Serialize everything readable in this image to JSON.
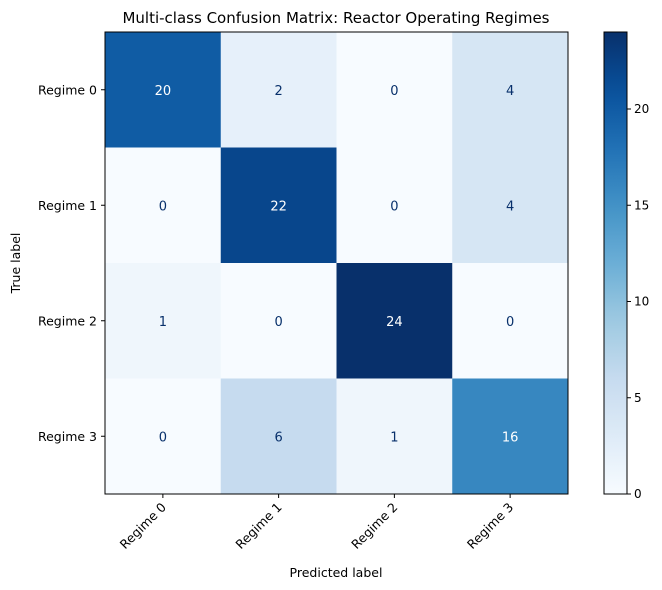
{
  "chart_data": {
    "type": "heatmap",
    "title": "Multi-class Confusion Matrix: Reactor Operating Regimes",
    "xlabel": "Predicted label",
    "ylabel": "True label",
    "x_categories": [
      "Regime 0",
      "Regime 1",
      "Regime 2",
      "Regime 3"
    ],
    "y_categories": [
      "Regime 0",
      "Regime 1",
      "Regime 2",
      "Regime 3"
    ],
    "values": [
      [
        20,
        2,
        0,
        4
      ],
      [
        0,
        22,
        0,
        4
      ],
      [
        1,
        0,
        24,
        0
      ],
      [
        0,
        6,
        1,
        16
      ]
    ],
    "colorbar": {
      "colormap": "Blues",
      "range": [
        0,
        24
      ],
      "ticks": [
        0,
        5,
        10,
        15,
        20
      ]
    },
    "colors": {
      "low": "#f7fbff",
      "high": "#08306b",
      "text_dark": "#08306b",
      "text_light": "#ffffff"
    }
  }
}
